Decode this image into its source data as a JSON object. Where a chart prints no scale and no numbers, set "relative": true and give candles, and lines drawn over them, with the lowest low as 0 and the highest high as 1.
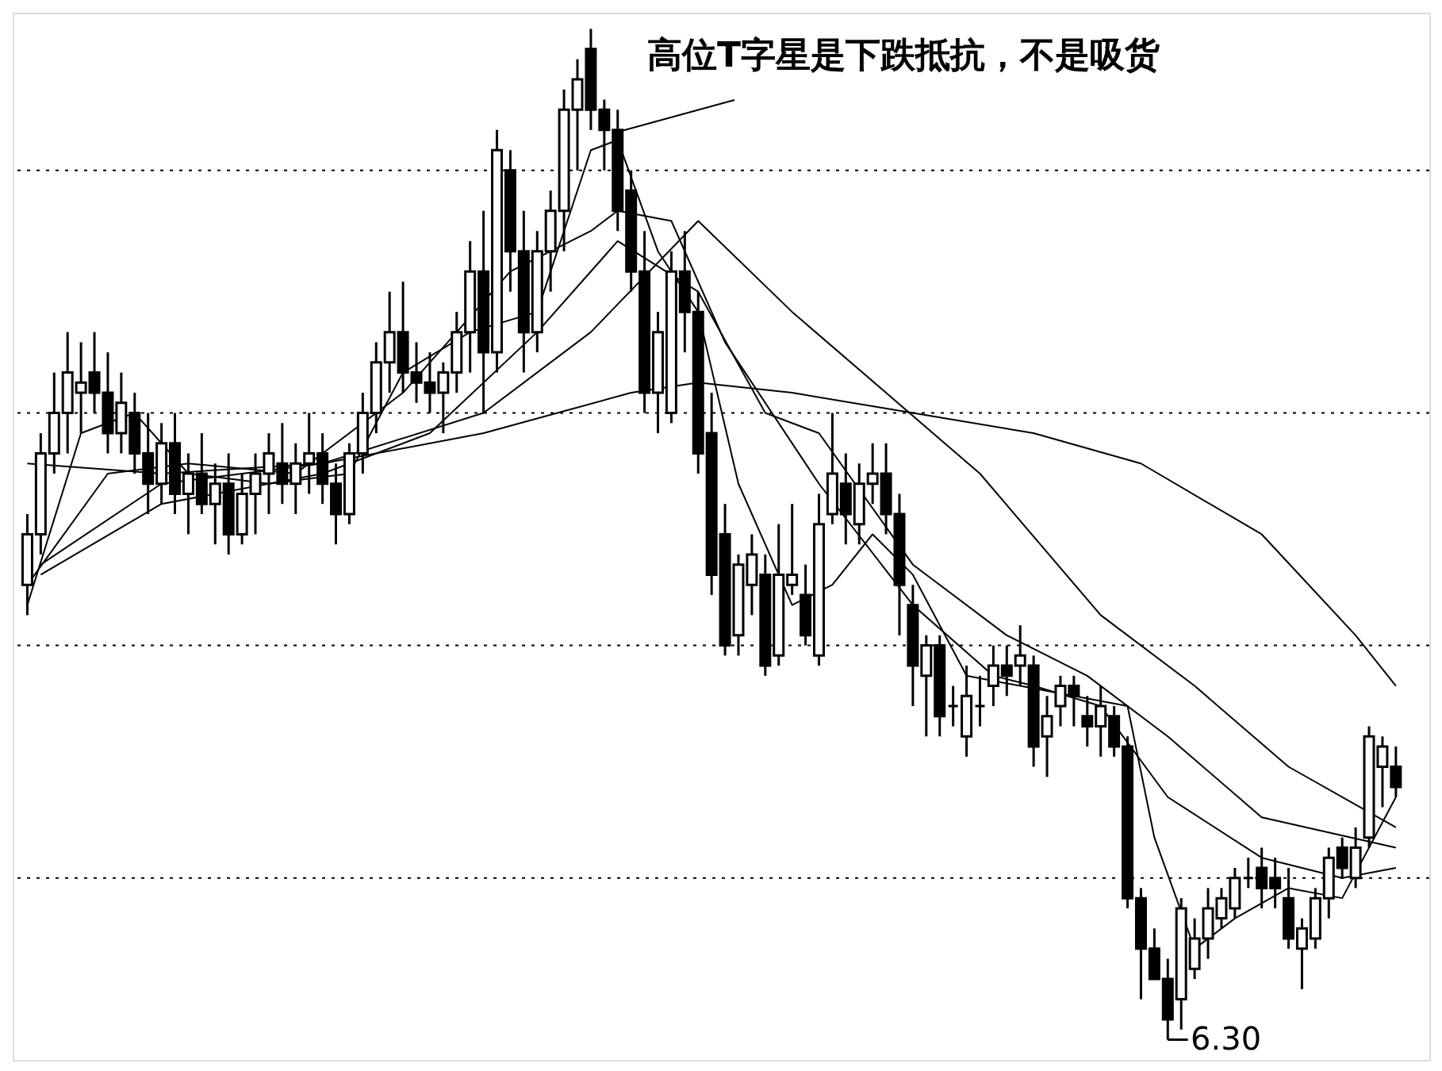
{
  "chart_data": {
    "type": "candlestick",
    "relative": true,
    "grid": false,
    "categories": [
      null,
      null,
      null,
      null,
      null,
      null,
      null,
      null,
      null,
      null,
      null,
      null,
      null,
      null,
      null,
      null,
      null,
      null,
      null,
      null,
      null,
      null,
      null,
      null,
      null,
      null,
      null,
      null,
      null,
      null,
      null,
      null,
      null,
      null,
      null,
      null,
      null,
      null,
      null,
      null,
      null,
      null,
      null,
      null,
      null,
      null,
      null,
      null,
      null,
      null,
      null,
      null,
      null,
      null,
      null,
      null,
      null,
      null,
      null,
      null,
      null,
      null,
      null,
      null,
      null,
      null,
      null,
      null,
      null,
      null,
      null,
      null,
      null,
      null,
      null,
      null,
      null,
      null,
      null,
      null,
      null,
      null,
      null,
      null,
      null,
      null,
      null,
      null,
      null,
      null,
      null,
      null,
      null,
      null,
      null,
      null,
      null,
      null,
      null,
      null,
      null,
      null,
      null
    ],
    "ohlc": [
      [
        0.45,
        0.52,
        0.42,
        0.5
      ],
      [
        0.5,
        0.6,
        0.48,
        0.58
      ],
      [
        0.58,
        0.66,
        0.56,
        0.62
      ],
      [
        0.62,
        0.7,
        0.58,
        0.66
      ],
      [
        0.64,
        0.69,
        0.6,
        0.65
      ],
      [
        0.66,
        0.7,
        0.62,
        0.64
      ],
      [
        0.64,
        0.68,
        0.58,
        0.6
      ],
      [
        0.6,
        0.66,
        0.58,
        0.63
      ],
      [
        0.62,
        0.64,
        0.56,
        0.58
      ],
      [
        0.58,
        0.62,
        0.52,
        0.55
      ],
      [
        0.55,
        0.61,
        0.53,
        0.59
      ],
      [
        0.59,
        0.62,
        0.52,
        0.54
      ],
      [
        0.54,
        0.58,
        0.5,
        0.56
      ],
      [
        0.56,
        0.6,
        0.52,
        0.53
      ],
      [
        0.53,
        0.57,
        0.49,
        0.55
      ],
      [
        0.55,
        0.58,
        0.48,
        0.5
      ],
      [
        0.5,
        0.56,
        0.49,
        0.54
      ],
      [
        0.54,
        0.58,
        0.5,
        0.56
      ],
      [
        0.56,
        0.6,
        0.52,
        0.58
      ],
      [
        0.57,
        0.61,
        0.53,
        0.55
      ],
      [
        0.55,
        0.59,
        0.52,
        0.57
      ],
      [
        0.57,
        0.62,
        0.54,
        0.58
      ],
      [
        0.58,
        0.6,
        0.53,
        0.55
      ],
      [
        0.55,
        0.57,
        0.49,
        0.52
      ],
      [
        0.52,
        0.59,
        0.51,
        0.58
      ],
      [
        0.58,
        0.64,
        0.56,
        0.62
      ],
      [
        0.62,
        0.69,
        0.6,
        0.67
      ],
      [
        0.67,
        0.74,
        0.64,
        0.7
      ],
      [
        0.7,
        0.75,
        0.64,
        0.66
      ],
      [
        0.66,
        0.69,
        0.63,
        0.65
      ],
      [
        0.65,
        0.68,
        0.62,
        0.64
      ],
      [
        0.64,
        0.67,
        0.6,
        0.66
      ],
      [
        0.66,
        0.72,
        0.64,
        0.7
      ],
      [
        0.7,
        0.79,
        0.66,
        0.76
      ],
      [
        0.76,
        0.82,
        0.62,
        0.68
      ],
      [
        0.68,
        0.9,
        0.66,
        0.88
      ],
      [
        0.86,
        0.88,
        0.74,
        0.78
      ],
      [
        0.78,
        0.82,
        0.66,
        0.7
      ],
      [
        0.7,
        0.8,
        0.68,
        0.78
      ],
      [
        0.78,
        0.84,
        0.74,
        0.82
      ],
      [
        0.82,
        0.94,
        0.78,
        0.92
      ],
      [
        0.92,
        0.97,
        0.86,
        0.95
      ],
      [
        0.98,
        1.0,
        0.9,
        0.92
      ],
      [
        0.92,
        0.93,
        0.86,
        0.9
      ],
      [
        0.9,
        0.92,
        0.8,
        0.82
      ],
      [
        0.84,
        0.86,
        0.74,
        0.76
      ],
      [
        0.76,
        0.8,
        0.62,
        0.64
      ],
      [
        0.64,
        0.72,
        0.6,
        0.7
      ],
      [
        0.62,
        0.78,
        0.61,
        0.76
      ],
      [
        0.76,
        0.8,
        0.68,
        0.72
      ],
      [
        0.72,
        0.74,
        0.56,
        0.58
      ],
      [
        0.6,
        0.64,
        0.44,
        0.46
      ],
      [
        0.5,
        0.53,
        0.38,
        0.39
      ],
      [
        0.4,
        0.48,
        0.38,
        0.47
      ],
      [
        0.45,
        0.5,
        0.42,
        0.48
      ],
      [
        0.46,
        0.48,
        0.36,
        0.37
      ],
      [
        0.38,
        0.51,
        0.37,
        0.46
      ],
      [
        0.45,
        0.53,
        0.44,
        0.46
      ],
      [
        0.44,
        0.47,
        0.39,
        0.4
      ],
      [
        0.38,
        0.54,
        0.37,
        0.51
      ],
      [
        0.52,
        0.62,
        0.51,
        0.56
      ],
      [
        0.55,
        0.58,
        0.49,
        0.52
      ],
      [
        0.51,
        0.57,
        0.49,
        0.55
      ],
      [
        0.55,
        0.59,
        0.53,
        0.56
      ],
      [
        0.56,
        0.59,
        0.5,
        0.52
      ],
      [
        0.52,
        0.54,
        0.4,
        0.45
      ],
      [
        0.43,
        0.45,
        0.33,
        0.37
      ],
      [
        0.36,
        0.4,
        0.3,
        0.39
      ],
      [
        0.39,
        0.4,
        0.3,
        0.32
      ],
      [
        0.33,
        0.35,
        0.31,
        0.33
      ],
      [
        0.3,
        0.37,
        0.28,
        0.34
      ],
      [
        0.33,
        0.36,
        0.31,
        0.33
      ],
      [
        0.35,
        0.39,
        0.33,
        0.37
      ],
      [
        0.37,
        0.39,
        0.34,
        0.36
      ],
      [
        0.37,
        0.41,
        0.35,
        0.38
      ],
      [
        0.37,
        0.38,
        0.27,
        0.29
      ],
      [
        0.3,
        0.34,
        0.26,
        0.32
      ],
      [
        0.33,
        0.36,
        0.31,
        0.35
      ],
      [
        0.35,
        0.36,
        0.31,
        0.34
      ],
      [
        0.32,
        0.34,
        0.29,
        0.31
      ],
      [
        0.31,
        0.35,
        0.28,
        0.33
      ],
      [
        0.32,
        0.33,
        0.28,
        0.29
      ],
      [
        0.29,
        0.3,
        0.13,
        0.14
      ],
      [
        0.14,
        0.15,
        0.04,
        0.09
      ],
      [
        0.09,
        0.11,
        0.06,
        0.06
      ],
      [
        0.06,
        0.08,
        0.0,
        0.02
      ],
      [
        0.04,
        0.14,
        0.01,
        0.13
      ],
      [
        0.07,
        0.12,
        0.06,
        0.1
      ],
      [
        0.1,
        0.15,
        0.08,
        0.13
      ],
      [
        0.12,
        0.15,
        0.11,
        0.14
      ],
      [
        0.13,
        0.17,
        0.12,
        0.16
      ],
      [
        0.16,
        0.18,
        0.15,
        0.16
      ],
      [
        0.17,
        0.19,
        0.13,
        0.15
      ],
      [
        0.16,
        0.18,
        0.13,
        0.15
      ],
      [
        0.14,
        0.17,
        0.09,
        0.1
      ],
      [
        0.09,
        0.12,
        0.05,
        0.11
      ],
      [
        0.1,
        0.15,
        0.09,
        0.14
      ],
      [
        0.14,
        0.19,
        0.12,
        0.18
      ],
      [
        0.19,
        0.2,
        0.16,
        0.17
      ],
      [
        0.16,
        0.21,
        0.15,
        0.19
      ],
      [
        0.2,
        0.31,
        0.19,
        0.3
      ],
      [
        0.27,
        0.3,
        0.23,
        0.29
      ],
      [
        0.27,
        0.29,
        0.24,
        0.25
      ]
    ],
    "series": [
      {
        "type": "line",
        "color": "#000000",
        "values": [
          0.43,
          null,
          null,
          null,
          0.6,
          null,
          null,
          null,
          0.62,
          null,
          null,
          null,
          0.56,
          null,
          null,
          null,
          null,
          null,
          0.55,
          null,
          null,
          null,
          null,
          null,
          0.56,
          null,
          null,
          null,
          0.66,
          null,
          null,
          null,
          null,
          0.7,
          null,
          null,
          null,
          null,
          0.72,
          null,
          null,
          null,
          0.88,
          null,
          0.89,
          null,
          null,
          0.78,
          null,
          null,
          0.72,
          null,
          null,
          0.55,
          null,
          null,
          null,
          0.43,
          null,
          null,
          0.45,
          null,
          null,
          0.5,
          null,
          null,
          0.46,
          null,
          null,
          null,
          0.36,
          null,
          null,
          null,
          0.35,
          null,
          null,
          null,
          0.34,
          null,
          null,
          null,
          0.33,
          null,
          0.2,
          null,
          null,
          0.09,
          null,
          null,
          0.12,
          null,
          null,
          null,
          0.15,
          null,
          null,
          null,
          0.14,
          null,
          null,
          null,
          0.24
        ]
      },
      {
        "type": "line",
        "color": "#000000",
        "values": [
          0.45,
          null,
          null,
          null,
          null,
          null,
          0.56,
          null,
          null,
          null,
          null,
          null,
          0.57,
          null,
          null,
          null,
          null,
          null,
          null,
          null,
          0.56,
          null,
          null,
          null,
          null,
          null,
          null,
          null,
          0.64,
          null,
          null,
          null,
          null,
          null,
          null,
          null,
          0.76,
          null,
          null,
          null,
          null,
          null,
          0.8,
          null,
          0.82,
          null,
          null,
          null,
          0.81,
          null,
          null,
          null,
          0.69,
          null,
          null,
          null,
          null,
          null,
          null,
          0.55,
          null,
          null,
          null,
          null,
          null,
          null,
          0.43,
          null,
          null,
          null,
          null,
          null,
          0.36,
          null,
          null,
          0.35,
          null,
          null,
          null,
          null,
          0.33,
          null,
          null,
          null,
          null,
          0.24,
          null,
          null,
          null,
          null,
          null,
          null,
          0.18,
          null,
          null,
          null,
          null,
          null,
          0.16,
          null,
          null,
          null,
          0.17
        ]
      },
      {
        "type": "line",
        "color": "#000000",
        "values": [
          null,
          0.46,
          null,
          null,
          null,
          null,
          null,
          null,
          null,
          null,
          0.53,
          null,
          null,
          null,
          null,
          null,
          null,
          null,
          null,
          null,
          null,
          null,
          0.56,
          null,
          null,
          null,
          null,
          null,
          null,
          null,
          0.6,
          null,
          null,
          null,
          null,
          null,
          null,
          null,
          0.7,
          null,
          null,
          null,
          null,
          null,
          0.79,
          null,
          null,
          null,
          null,
          null,
          0.74,
          null,
          null,
          null,
          null,
          0.62,
          null,
          null,
          null,
          0.6,
          null,
          null,
          null,
          null,
          null,
          null,
          0.47,
          null,
          null,
          null,
          null,
          null,
          null,
          0.4,
          null,
          null,
          null,
          null,
          null,
          0.36,
          null,
          null,
          null,
          null,
          null,
          0.3,
          null,
          null,
          null,
          null,
          null,
          null,
          0.22,
          null,
          null,
          null,
          null,
          null,
          null,
          null,
          null,
          null,
          0.19
        ]
      },
      {
        "type": "line",
        "color": "#000000",
        "values": [
          null,
          0.47,
          null,
          null,
          null,
          null,
          null,
          null,
          null,
          null,
          0.55,
          null,
          null,
          null,
          null,
          null,
          null,
          null,
          null,
          null,
          null,
          null,
          0.57,
          null,
          null,
          null,
          null,
          null,
          null,
          null,
          null,
          null,
          null,
          null,
          0.62,
          null,
          null,
          null,
          null,
          null,
          null,
          null,
          0.7,
          null,
          null,
          null,
          null,
          null,
          null,
          null,
          0.81,
          null,
          null,
          null,
          null,
          null,
          null,
          0.72,
          null,
          null,
          null,
          null,
          null,
          null,
          0.64,
          null,
          null,
          null,
          null,
          null,
          null,
          0.56,
          null,
          null,
          null,
          null,
          null,
          null,
          null,
          null,
          0.42,
          null,
          null,
          null,
          null,
          null,
          null,
          0.35,
          null,
          null,
          null,
          null,
          null,
          null,
          0.27,
          null,
          null,
          null,
          null,
          null,
          null,
          null,
          0.21
        ]
      },
      {
        "type": "line",
        "color": "#000000",
        "values": [
          0.57,
          null,
          null,
          null,
          null,
          null,
          null,
          null,
          null,
          null,
          0.56,
          null,
          null,
          null,
          null,
          null,
          null,
          null,
          null,
          null,
          null,
          null,
          0.57,
          null,
          null,
          null,
          null,
          null,
          null,
          null,
          null,
          null,
          null,
          null,
          0.6,
          null,
          null,
          null,
          null,
          null,
          null,
          null,
          null,
          null,
          null,
          0.64,
          null,
          null,
          null,
          null,
          0.65,
          null,
          null,
          null,
          null,
          null,
          null,
          0.64,
          null,
          null,
          null,
          null,
          null,
          null,
          null,
          null,
          0.62,
          null,
          null,
          null,
          null,
          null,
          null,
          null,
          null,
          0.6,
          null,
          null,
          null,
          null,
          null,
          null,
          null,
          0.57,
          null,
          null,
          null,
          null,
          null,
          null,
          null,
          null,
          0.5,
          null,
          null,
          null,
          null,
          null,
          null,
          0.4,
          null,
          null,
          0.35
        ]
      }
    ],
    "ref_lines": [
      {
        "axis": "y",
        "value": 0.86,
        "color": "#000000",
        "line_style": "dotted"
      },
      {
        "axis": "y",
        "value": 0.62,
        "color": "#000000",
        "line_style": "dotted"
      },
      {
        "axis": "y",
        "value": 0.39,
        "color": "#000000",
        "line_style": "dotted"
      },
      {
        "axis": "y",
        "value": 0.16,
        "color": "#000000",
        "line_style": "dotted"
      }
    ],
    "annotations": [
      "高位T字星是下跌抵抗，不是吸货",
      "6.30"
    ]
  }
}
